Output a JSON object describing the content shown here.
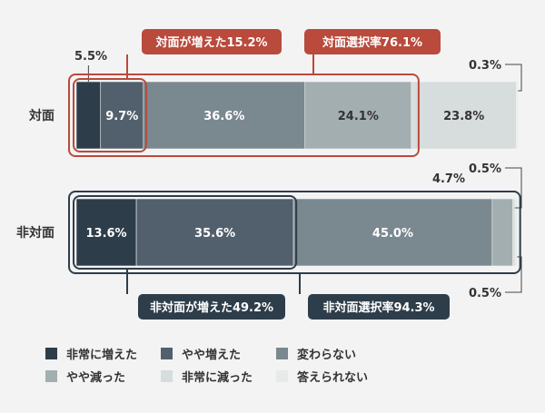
{
  "chart_data": {
    "type": "bar",
    "stacked": true,
    "orientation": "horizontal",
    "categories": [
      "対面",
      "非対面"
    ],
    "series": [
      {
        "name": "非常に増えた",
        "color": "#2e3d4a",
        "values": [
          5.5,
          13.6
        ],
        "labels": [
          "",
          "13.6%"
        ]
      },
      {
        "name": "やや増えた",
        "color": "#51606c",
        "values": [
          9.7,
          35.6
        ],
        "labels": [
          "9.7%",
          "35.6%"
        ]
      },
      {
        "name": "変わらない",
        "color": "#7a888f",
        "values": [
          36.6,
          45.0
        ],
        "labels": [
          "36.6%",
          "45.0%"
        ]
      },
      {
        "name": "やや減った",
        "color": "#a3aeb1",
        "values": [
          24.1,
          4.7
        ],
        "labels": [
          "24.1%",
          ""
        ]
      },
      {
        "name": "非常に減った",
        "color": "#d7dcdc",
        "values": [
          23.8,
          0.5
        ],
        "labels": [
          "23.8%",
          ""
        ]
      },
      {
        "name": "答えられない",
        "color": "#e8eaea",
        "values": [
          0.3,
          0.5
        ],
        "labels": [
          "",
          ""
        ]
      }
    ],
    "outside_labels": [
      {
        "text": "5.5%",
        "bar": 0,
        "segment": 0
      },
      {
        "text": "0.3%",
        "bar": 0,
        "segment": 5
      },
      {
        "text": "4.7%",
        "bar": 1,
        "segment": 3
      },
      {
        "text": "0.5%",
        "bar": 1,
        "segment": 4
      },
      {
        "text": "0.5%",
        "bar": 1,
        "segment": 5
      }
    ],
    "callouts": [
      {
        "text": "対面が増えた15.2%",
        "bar": 0,
        "color": "#b94a3c"
      },
      {
        "text": "対面選択率76.1%",
        "bar": 0,
        "color": "#b94a3c"
      },
      {
        "text": "非対面が増えた49.2%",
        "bar": 1,
        "color": "#2e3d4a"
      },
      {
        "text": "非対面選択率94.3%",
        "bar": 1,
        "color": "#2e3d4a"
      }
    ],
    "xlim": [
      0,
      100
    ],
    "legend_position": "bottom"
  }
}
